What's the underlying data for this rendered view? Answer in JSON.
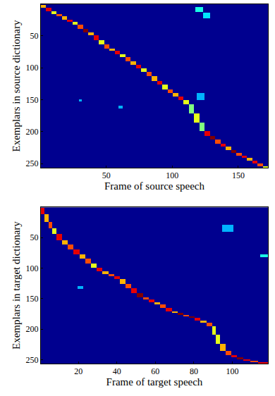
{
  "chart_data": [
    {
      "type": "heatmap",
      "x_label": "Frame of source speech",
      "y_label": "Exemplars in source dictionary",
      "frames": 172,
      "exemplars": 256,
      "xlim": [
        0.5,
        172.5
      ],
      "ylim": [
        256.5,
        0.5
      ],
      "xticks": [
        50,
        100,
        150
      ],
      "yticks": [
        50,
        100,
        150,
        200,
        250
      ],
      "zlim": [
        0,
        1
      ],
      "blocks": [
        [
          1,
          4,
          2,
          5,
          0.7
        ],
        [
          5,
          8,
          6,
          11,
          0.9
        ],
        [
          9,
          12,
          12,
          15,
          0.6
        ],
        [
          13,
          16,
          16,
          19,
          0.8
        ],
        [
          17,
          20,
          20,
          24,
          0.7
        ],
        [
          21,
          24,
          25,
          28,
          0.9
        ],
        [
          25,
          28,
          29,
          32,
          0.6
        ],
        [
          29,
          32,
          33,
          39,
          0.8
        ],
        [
          33,
          36,
          40,
          44,
          1.0
        ],
        [
          37,
          40,
          45,
          49,
          0.7
        ],
        [
          41,
          44,
          50,
          56,
          0.9
        ],
        [
          45,
          48,
          57,
          63,
          0.6
        ],
        [
          49,
          52,
          64,
          69,
          0.8
        ],
        [
          53,
          56,
          70,
          73,
          0.7
        ],
        [
          57,
          60,
          74,
          78,
          0.9
        ],
        [
          61,
          64,
          79,
          83,
          0.6
        ],
        [
          65,
          68,
          84,
          89,
          0.8
        ],
        [
          69,
          72,
          90,
          95,
          0.7
        ],
        [
          73,
          76,
          96,
          100,
          0.9
        ],
        [
          77,
          80,
          101,
          106,
          0.6
        ],
        [
          81,
          84,
          107,
          113,
          0.8
        ],
        [
          85,
          88,
          114,
          120,
          0.7
        ],
        [
          89,
          92,
          121,
          126,
          0.9
        ],
        [
          93,
          96,
          127,
          133,
          0.6
        ],
        [
          97,
          100,
          134,
          139,
          0.8
        ],
        [
          101,
          104,
          140,
          145,
          0.7
        ],
        [
          105,
          108,
          146,
          150,
          0.9
        ],
        [
          109,
          112,
          151,
          157,
          0.6
        ],
        [
          113,
          116,
          158,
          171,
          0.5
        ],
        [
          117,
          120,
          172,
          185,
          0.6
        ],
        [
          121,
          124,
          186,
          199,
          0.5
        ],
        [
          125,
          128,
          200,
          206,
          0.9
        ],
        [
          129,
          132,
          207,
          212,
          1.0
        ],
        [
          133,
          136,
          213,
          218,
          0.8
        ],
        [
          137,
          140,
          219,
          223,
          0.9
        ],
        [
          141,
          144,
          224,
          228,
          0.7
        ],
        [
          145,
          148,
          229,
          233,
          1.0
        ],
        [
          149,
          152,
          234,
          237,
          0.8
        ],
        [
          153,
          156,
          238,
          241,
          0.9
        ],
        [
          157,
          160,
          242,
          245,
          0.7
        ],
        [
          161,
          164,
          246,
          249,
          0.9
        ],
        [
          165,
          168,
          250,
          254,
          0.8
        ],
        [
          169,
          172,
          255,
          256,
          0.6
        ],
        [
          118,
          123,
          5,
          12,
          0.4
        ],
        [
          124,
          128,
          14,
          22,
          0.35
        ],
        [
          60,
          62,
          160,
          163,
          0.3
        ],
        [
          30,
          31,
          150,
          152,
          0.3
        ],
        [
          119,
          124,
          140,
          150,
          0.3
        ]
      ]
    },
    {
      "type": "heatmap",
      "x_label": "Frame of target speech",
      "y_label": "Exemplars in target dictionary",
      "frames": 118,
      "exemplars": 256,
      "xlim": [
        0.5,
        118.5
      ],
      "ylim": [
        256.5,
        0.5
      ],
      "xticks": [
        20,
        40,
        60,
        80,
        100
      ],
      "yticks": [
        50,
        100,
        150,
        200,
        250
      ],
      "zlim": [
        0,
        1
      ],
      "blocks": [
        [
          1,
          2,
          2,
          11,
          0.9
        ],
        [
          3,
          4,
          12,
          24,
          0.7
        ],
        [
          5,
          6,
          25,
          34,
          0.8
        ],
        [
          7,
          8,
          35,
          44,
          0.6
        ],
        [
          9,
          11,
          45,
          54,
          0.9
        ],
        [
          12,
          14,
          55,
          61,
          0.7
        ],
        [
          15,
          17,
          62,
          69,
          0.8
        ],
        [
          18,
          20,
          70,
          77,
          0.9
        ],
        [
          21,
          23,
          78,
          84,
          0.7
        ],
        [
          24,
          26,
          85,
          92,
          0.8
        ],
        [
          27,
          29,
          93,
          99,
          0.6
        ],
        [
          30,
          32,
          100,
          105,
          0.9
        ],
        [
          33,
          35,
          106,
          109,
          0.7
        ],
        [
          36,
          38,
          110,
          113,
          0.8
        ],
        [
          39,
          41,
          114,
          117,
          0.9
        ],
        [
          42,
          44,
          118,
          125,
          0.7
        ],
        [
          45,
          47,
          126,
          133,
          0.8
        ],
        [
          48,
          50,
          134,
          141,
          0.9
        ],
        [
          51,
          53,
          142,
          147,
          1.0
        ],
        [
          54,
          56,
          148,
          151,
          0.8
        ],
        [
          57,
          59,
          152,
          155,
          0.9
        ],
        [
          60,
          62,
          156,
          159,
          0.7
        ],
        [
          63,
          65,
          160,
          165,
          0.8
        ],
        [
          66,
          68,
          166,
          170,
          0.9
        ],
        [
          69,
          71,
          171,
          173,
          0.7
        ],
        [
          72,
          74,
          174,
          176,
          1.0
        ],
        [
          75,
          77,
          177,
          178,
          0.8
        ],
        [
          78,
          80,
          179,
          181,
          1.0
        ],
        [
          81,
          83,
          182,
          185,
          0.9
        ],
        [
          84,
          86,
          186,
          189,
          0.7
        ],
        [
          87,
          89,
          190,
          195,
          0.8
        ],
        [
          90,
          91,
          196,
          209,
          0.6
        ],
        [
          92,
          93,
          210,
          224,
          0.6
        ],
        [
          94,
          96,
          225,
          235,
          0.7
        ],
        [
          97,
          99,
          236,
          242,
          0.8
        ],
        [
          100,
          102,
          243,
          246,
          0.9
        ],
        [
          103,
          105,
          247,
          249,
          1.0
        ],
        [
          106,
          109,
          250,
          251,
          0.9
        ],
        [
          110,
          113,
          252,
          253,
          0.8
        ],
        [
          114,
          118,
          254,
          256,
          0.9
        ],
        [
          95,
          100,
          30,
          40,
          0.3
        ],
        [
          115,
          118,
          78,
          82,
          0.4
        ],
        [
          20,
          22,
          130,
          134,
          0.3
        ]
      ]
    }
  ]
}
